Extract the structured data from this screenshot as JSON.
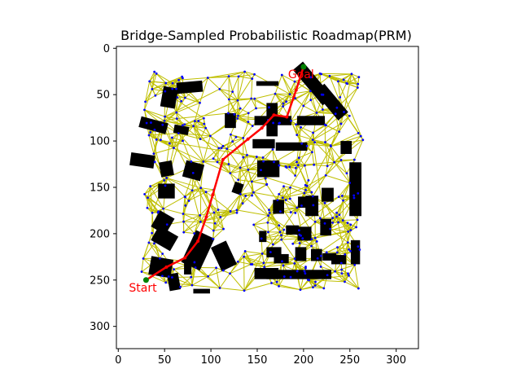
{
  "chart_data": {
    "type": "scatter",
    "title": "Bridge-Sampled Probabilistic Roadmap(PRM)",
    "xlabel": "",
    "ylabel": "",
    "xlim": [
      -2,
      324
    ],
    "ylim": [
      324,
      -2
    ],
    "y_inverted": true,
    "grid": false,
    "xticks": [
      0,
      50,
      100,
      150,
      200,
      250,
      300
    ],
    "yticks": [
      0,
      50,
      100,
      150,
      200,
      250,
      300
    ],
    "colors": {
      "obstacle": "#000000",
      "roadmap_edge": "#bfbf00",
      "sample_node": "#0000ff",
      "path": "#ff0000",
      "start_goal_marker": "#008000",
      "annotation_text": "#ff0000"
    },
    "start": {
      "label": "Start",
      "x": 30,
      "y": 250
    },
    "goal": {
      "label": "Goal",
      "x": 200,
      "y": 20
    },
    "path": [
      {
        "x": 30,
        "y": 250
      },
      {
        "x": 52,
        "y": 236
      },
      {
        "x": 72,
        "y": 226
      },
      {
        "x": 86,
        "y": 208
      },
      {
        "x": 95,
        "y": 182
      },
      {
        "x": 102,
        "y": 158
      },
      {
        "x": 113,
        "y": 120
      },
      {
        "x": 140,
        "y": 98
      },
      {
        "x": 155,
        "y": 86
      },
      {
        "x": 168,
        "y": 72
      },
      {
        "x": 182,
        "y": 74
      },
      {
        "x": 192,
        "y": 45
      },
      {
        "x": 200,
        "y": 20
      }
    ],
    "obstacles": [
      {
        "x": 55,
        "y": 53,
        "w": 16,
        "h": 22,
        "angle": 10
      },
      {
        "x": 77,
        "y": 42,
        "w": 28,
        "h": 12,
        "angle": -5
      },
      {
        "x": 38,
        "y": 83,
        "w": 30,
        "h": 12,
        "angle": 15
      },
      {
        "x": 68,
        "y": 88,
        "w": 16,
        "h": 9,
        "angle": 10
      },
      {
        "x": 121,
        "y": 78,
        "w": 12,
        "h": 16,
        "angle": 0
      },
      {
        "x": 26,
        "y": 121,
        "w": 26,
        "h": 14,
        "angle": 8
      },
      {
        "x": 52,
        "y": 130,
        "w": 14,
        "h": 16,
        "angle": -10
      },
      {
        "x": 81,
        "y": 132,
        "w": 20,
        "h": 18,
        "angle": 15
      },
      {
        "x": 52,
        "y": 154,
        "w": 18,
        "h": 16,
        "angle": 0
      },
      {
        "x": 129,
        "y": 151,
        "w": 10,
        "h": 12,
        "angle": 20
      },
      {
        "x": 162,
        "y": 130,
        "w": 24,
        "h": 18,
        "angle": 0
      },
      {
        "x": 157,
        "y": 103,
        "w": 24,
        "h": 10,
        "angle": 0
      },
      {
        "x": 166,
        "y": 77,
        "w": 12,
        "h": 36,
        "angle": 0
      },
      {
        "x": 161,
        "y": 38,
        "w": 24,
        "h": 5,
        "angle": 0
      },
      {
        "x": 167,
        "y": 78,
        "w": 40,
        "h": 10,
        "angle": 0
      },
      {
        "x": 208,
        "y": 78,
        "w": 30,
        "h": 10,
        "angle": 0
      },
      {
        "x": 210,
        "y": 38,
        "w": 14,
        "h": 50,
        "angle": -40
      },
      {
        "x": 230,
        "y": 58,
        "w": 14,
        "h": 40,
        "angle": -40
      },
      {
        "x": 187,
        "y": 106,
        "w": 34,
        "h": 9,
        "angle": 0
      },
      {
        "x": 246,
        "y": 107,
        "w": 12,
        "h": 14,
        "angle": 0
      },
      {
        "x": 173,
        "y": 171,
        "w": 12,
        "h": 15,
        "angle": 0
      },
      {
        "x": 199,
        "y": 166,
        "w": 10,
        "h": 12,
        "angle": 0
      },
      {
        "x": 209,
        "y": 170,
        "w": 14,
        "h": 22,
        "angle": 0
      },
      {
        "x": 226,
        "y": 158,
        "w": 13,
        "h": 15,
        "angle": 0
      },
      {
        "x": 256,
        "y": 152,
        "w": 13,
        "h": 58,
        "angle": 0
      },
      {
        "x": 188,
        "y": 196,
        "w": 14,
        "h": 10,
        "angle": 0
      },
      {
        "x": 201,
        "y": 200,
        "w": 15,
        "h": 15,
        "angle": 0
      },
      {
        "x": 224,
        "y": 193,
        "w": 12,
        "h": 18,
        "angle": 0
      },
      {
        "x": 156,
        "y": 203,
        "w": 8,
        "h": 12,
        "angle": 0
      },
      {
        "x": 168,
        "y": 220,
        "w": 16,
        "h": 11,
        "angle": 0
      },
      {
        "x": 176,
        "y": 227,
        "w": 16,
        "h": 10,
        "angle": 0
      },
      {
        "x": 197,
        "y": 222,
        "w": 12,
        "h": 15,
        "angle": 0
      },
      {
        "x": 214,
        "y": 223,
        "w": 12,
        "h": 13,
        "angle": 0
      },
      {
        "x": 228,
        "y": 225,
        "w": 15,
        "h": 8,
        "angle": 0
      },
      {
        "x": 238,
        "y": 228,
        "w": 16,
        "h": 10,
        "angle": 0
      },
      {
        "x": 256,
        "y": 220,
        "w": 10,
        "h": 26,
        "angle": 0
      },
      {
        "x": 160,
        "y": 243,
        "w": 26,
        "h": 12,
        "angle": 0
      },
      {
        "x": 195,
        "y": 244,
        "w": 70,
        "h": 10,
        "angle": 0
      },
      {
        "x": 48,
        "y": 188,
        "w": 18,
        "h": 20,
        "angle": 30
      },
      {
        "x": 50,
        "y": 205,
        "w": 24,
        "h": 18,
        "angle": 30
      },
      {
        "x": 86,
        "y": 218,
        "w": 22,
        "h": 38,
        "angle": 25
      },
      {
        "x": 114,
        "y": 224,
        "w": 18,
        "h": 28,
        "angle": -25
      },
      {
        "x": 75,
        "y": 237,
        "w": 8,
        "h": 14,
        "angle": 0
      },
      {
        "x": 46,
        "y": 236,
        "w": 24,
        "h": 20,
        "angle": 10
      },
      {
        "x": 60,
        "y": 252,
        "w": 12,
        "h": 18,
        "angle": -10
      },
      {
        "x": 90,
        "y": 262,
        "w": 18,
        "h": 5,
        "angle": 0
      }
    ]
  }
}
